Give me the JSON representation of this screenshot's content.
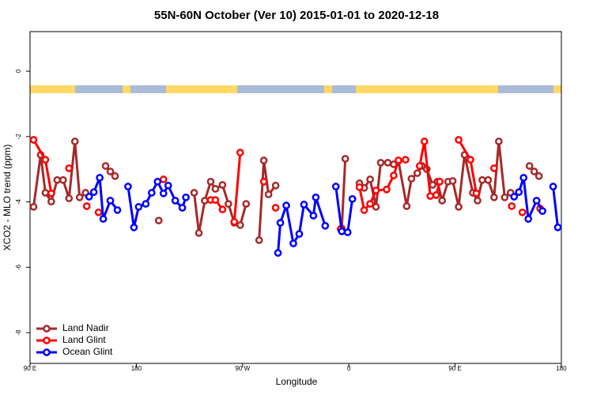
{
  "chart_data": {
    "type": "line",
    "title": "55N-60N October (Ver 10)   2015-01-01 to 2020-12-18",
    "x_label": "Longitude",
    "y_label": "XCO2 - MLO trend (ppm)",
    "xlim": [
      90,
      540
    ],
    "ylim": [
      -8.94,
      1.21
    ],
    "xticks": [
      {
        "value": 90,
        "label": "90 E"
      },
      180,
      {
        "value": 270,
        "label": "90 W"
      },
      {
        "value": 360,
        "label": "0"
      },
      {
        "value": 450,
        "label": "90 E"
      },
      {
        "value": 540,
        "label": "180"
      }
    ],
    "yticks": [
      -8,
      -6,
      -4,
      -2,
      0
    ],
    "legend": "bottom-left",
    "series": [
      {
        "name": "Land Nadir",
        "color": "#a52a2a",
        "x": [
          93,
          99,
          103,
          108,
          113,
          118,
          123,
          128,
          132,
          137,
          null,
          154,
          158,
          162,
          null,
          199,
          null,
          229,
          233,
          238,
          243,
          247,
          253,
          258,
          263,
          268,
          273,
          null,
          284,
          288,
          292,
          298,
          null,
          354,
          357,
          null,
          369,
          373,
          378,
          383,
          387,
          393,
          398,
          402,
          409,
          413,
          418,
          422,
          426,
          431,
          435,
          439,
          444,
          448,
          453,
          458,
          465,
          469,
          473,
          478,
          483,
          487,
          492,
          497,
          null,
          513,
          517,
          521
        ],
        "values": [
          -4.15,
          -2.56,
          -3.72,
          -3.99,
          -3.33,
          -3.33,
          -3.89,
          -2.15,
          -3.86,
          -3.72,
          null,
          -2.9,
          -3.07,
          -3.21,
          null,
          -4.57,
          null,
          -3.72,
          -4.95,
          -3.96,
          -3.38,
          -3.6,
          -3.48,
          -4.06,
          -4.64,
          -4.71,
          -4.06,
          null,
          -5.17,
          -2.73,
          -3.77,
          -3.5,
          null,
          -4.81,
          -2.68,
          null,
          -3.43,
          -3.57,
          -3.31,
          -4.15,
          -2.8,
          -2.8,
          -2.85,
          -2.75,
          -4.13,
          -3.29,
          -3.12,
          -2.9,
          -3.0,
          -3.48,
          -3.38,
          -3.96,
          -3.38,
          -3.36,
          -4.15,
          -2.56,
          -3.72,
          -3.96,
          -3.33,
          -3.33,
          -3.86,
          -2.15,
          -3.86,
          -3.72,
          null,
          -2.9,
          -3.07,
          -3.21
        ]
      },
      {
        "name": "Land Glint",
        "color": "#ff0000",
        "x": [
          93,
          103,
          108,
          null,
          123,
          null,
          138,
          null,
          148,
          null,
          203,
          null,
          243,
          247,
          253,
          null,
          263,
          268,
          null,
          288,
          null,
          298,
          null,
          353,
          null,
          369,
          373,
          378,
          383,
          392,
          398,
          402,
          408,
          null,
          420,
          424,
          429,
          434,
          437,
          null,
          453,
          463,
          468,
          null,
          483,
          null,
          498,
          null,
          507,
          null,
          522
        ],
        "values": [
          -2.1,
          -2.71,
          -3.74,
          null,
          -2.97,
          null,
          -4.13,
          null,
          -4.32,
          null,
          -3.31,
          null,
          -3.94,
          -3.94,
          -4.23,
          null,
          -4.61,
          -2.49,
          null,
          -3.38,
          null,
          -4.18,
          null,
          -4.83,
          null,
          -3.55,
          -4.25,
          -4.06,
          -3.65,
          -3.62,
          -3.19,
          -2.73,
          -2.71,
          null,
          -2.9,
          -2.15,
          -3.82,
          -3.79,
          -3.38,
          null,
          -2.1,
          -2.71,
          -3.74,
          null,
          -2.97,
          null,
          -4.13,
          null,
          -4.32,
          null,
          -4.2
        ]
      },
      {
        "name": "Ocean Glint",
        "color": "#0000ff",
        "x": [
          140,
          144,
          149,
          152,
          158,
          164,
          null,
          173,
          178,
          182,
          188,
          193,
          198,
          203,
          207,
          213,
          219,
          222,
          null,
          300,
          302,
          307,
          313,
          318,
          322,
          330,
          332,
          340,
          null,
          349,
          354,
          359,
          363,
          null,
          500,
          504,
          508,
          512,
          519,
          524,
          null,
          533,
          537
        ],
        "values": [
          -3.84,
          -3.7,
          -3.26,
          -4.52,
          -3.96,
          -4.25,
          null,
          -3.53,
          -4.78,
          -4.15,
          -4.06,
          -3.72,
          -3.38,
          -3.74,
          -3.5,
          -3.96,
          -4.18,
          -3.86,
          null,
          -5.56,
          -4.64,
          -4.11,
          -5.27,
          -4.98,
          -4.08,
          -4.42,
          -3.86,
          -4.73,
          null,
          -3.53,
          -4.9,
          -4.93,
          -3.91,
          null,
          -3.84,
          -3.7,
          -3.26,
          -4.52,
          -3.96,
          -4.28,
          null,
          -3.53,
          -4.78
        ]
      }
    ]
  }
}
